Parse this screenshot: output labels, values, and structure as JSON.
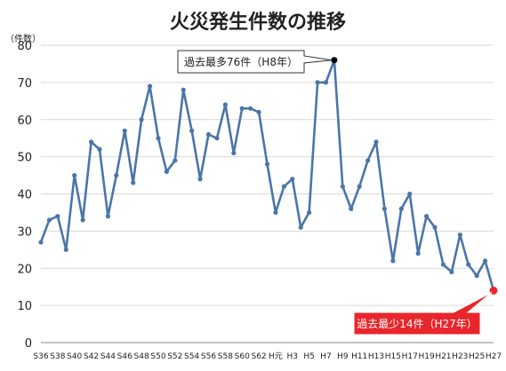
{
  "chart_data": {
    "type": "line",
    "title": "火災発生件数の推移",
    "unit_label": "（件数）",
    "xlabel": "",
    "ylabel": "",
    "ylim": [
      0,
      80
    ],
    "yticks": [
      0,
      10,
      20,
      30,
      40,
      50,
      60,
      70,
      80
    ],
    "grid": true,
    "x": [
      "S36",
      "S37",
      "S38",
      "S39",
      "S40",
      "S41",
      "S42",
      "S43",
      "S44",
      "S45",
      "S46",
      "S47",
      "S48",
      "S49",
      "S50",
      "S51",
      "S52",
      "S53",
      "S54",
      "S55",
      "S56",
      "S57",
      "S58",
      "S59",
      "S60",
      "S61",
      "S62",
      "S63",
      "H元",
      "H2",
      "H3",
      "H4",
      "H5",
      "H6",
      "H7",
      "H8",
      "H9",
      "H10",
      "H11",
      "H12",
      "H13",
      "H14",
      "H15",
      "H16",
      "H17",
      "H18",
      "H19",
      "H20",
      "H21",
      "H22",
      "H23",
      "H24",
      "H25",
      "H26",
      "H27"
    ],
    "x_tick_labels": [
      "S36",
      "S38",
      "S40",
      "S42",
      "S44",
      "S46",
      "S48",
      "S50",
      "S52",
      "S54",
      "S56",
      "S58",
      "S60",
      "S62",
      "H元",
      "H3",
      "H5",
      "H7",
      "H9",
      "H11",
      "H13",
      "H15",
      "H17",
      "H19",
      "H21",
      "H23",
      "H25",
      "H27"
    ],
    "series": [
      {
        "name": "",
        "color": "#4a76a8",
        "values": [
          27,
          33,
          34,
          25,
          45,
          33,
          54,
          52,
          34,
          45,
          57,
          43,
          60,
          69,
          55,
          46,
          49,
          68,
          57,
          44,
          56,
          55,
          64,
          51,
          63,
          63,
          62,
          48,
          35,
          42,
          44,
          31,
          35,
          70,
          70,
          76,
          42,
          36,
          42,
          49,
          54,
          36,
          22,
          36,
          40,
          24,
          34,
          31,
          21,
          19,
          29,
          21,
          18,
          22,
          14
        ]
      }
    ],
    "annotations": {
      "max": {
        "text": "過去最多76件（H8年）",
        "x": "H8",
        "value": 76,
        "marker_color": "#000000"
      },
      "min": {
        "text": "過去最少14件（H27年）",
        "x": "H27",
        "value": 14,
        "marker_color": "#e8262b",
        "box_color": "#e8262b"
      }
    }
  }
}
